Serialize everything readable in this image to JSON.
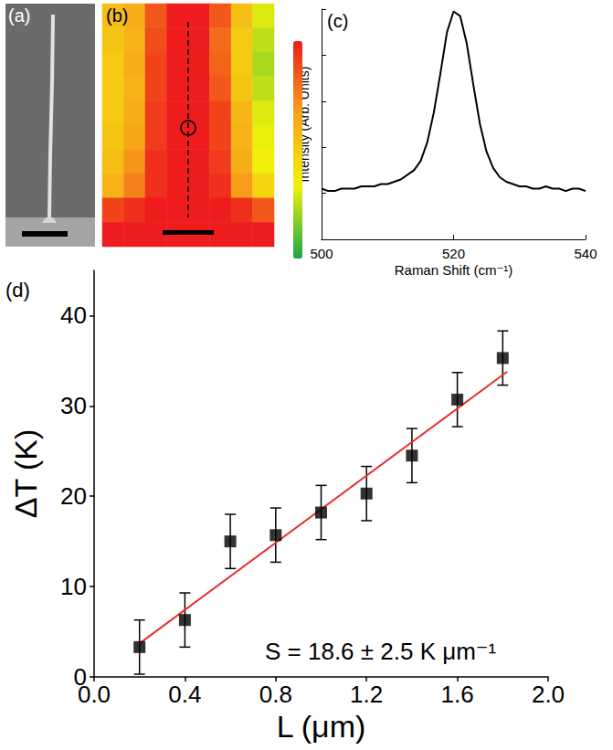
{
  "chart_data": [
    {
      "type": "image",
      "title": "(a)"
    },
    {
      "type": "heatmap",
      "title": "(b)",
      "color_range": [
        0,
        1
      ],
      "cells": [
        [
          0.55,
          0.62,
          0.85,
          1,
          1,
          0.85,
          0.55,
          0.3
        ],
        [
          0.52,
          0.6,
          0.88,
          1,
          1,
          0.8,
          0.5,
          0.25
        ],
        [
          0.5,
          0.62,
          0.9,
          1,
          1,
          0.82,
          0.5,
          0.22
        ],
        [
          0.5,
          0.6,
          0.9,
          1,
          1,
          0.85,
          0.52,
          0.25
        ],
        [
          0.5,
          0.62,
          0.92,
          1,
          1,
          0.9,
          0.58,
          0.3
        ],
        [
          0.52,
          0.65,
          0.92,
          1,
          1,
          0.9,
          0.6,
          0.32
        ],
        [
          0.55,
          0.7,
          0.95,
          1,
          1,
          0.92,
          0.62,
          0.35
        ],
        [
          0.6,
          0.75,
          0.95,
          1,
          1,
          0.95,
          0.68,
          0.45
        ],
        [
          0.9,
          0.95,
          1,
          1,
          1,
          1,
          0.95,
          0.85
        ],
        [
          1,
          1,
          1,
          1,
          1,
          1,
          1,
          1
        ]
      ]
    },
    {
      "type": "line",
      "title": "(c)",
      "x_label": "Raman Shift (cm⁻¹)",
      "y_label": "Intensity (Arb. Units)",
      "color": "#000000",
      "tick_labels": "x",
      "x": [
        500,
        501,
        502,
        503,
        504,
        505,
        506,
        507,
        508,
        509,
        510,
        511,
        512,
        513,
        514,
        515,
        516,
        517,
        518,
        519,
        520,
        521,
        522,
        523,
        524,
        525,
        526,
        527,
        528,
        529,
        530,
        531,
        532,
        533,
        534,
        535,
        536,
        537,
        538,
        539,
        540
      ],
      "values": [
        0.22,
        0.21,
        0.21,
        0.22,
        0.22,
        0.22,
        0.23,
        0.23,
        0.23,
        0.24,
        0.24,
        0.25,
        0.26,
        0.28,
        0.3,
        0.34,
        0.42,
        0.55,
        0.72,
        0.9,
        0.99,
        0.97,
        0.85,
        0.67,
        0.5,
        0.38,
        0.31,
        0.27,
        0.25,
        0.24,
        0.23,
        0.23,
        0.22,
        0.22,
        0.23,
        0.22,
        0.22,
        0.21,
        0.22,
        0.22,
        0.21
      ],
      "xlim": [
        500,
        540
      ],
      "xticks": [
        500,
        520,
        540
      ],
      "ylim": [
        0,
        1
      ],
      "yticks": [
        0,
        0.2,
        0.4,
        0.6,
        0.8,
        1
      ]
    },
    {
      "type": "scatter",
      "title": "(d)",
      "x_label": "L (μm)",
      "y_label": "ΔT (K)",
      "annotation": "S = 18.6 ± 2.5 K μm⁻¹",
      "xlim": [
        0,
        2
      ],
      "xticks": [
        {
          "value": 0,
          "label": "0.0"
        },
        0.4,
        0.8,
        1.2,
        1.6,
        {
          "value": 2,
          "label": "2.0"
        }
      ],
      "ylim": [
        0,
        45
      ],
      "yticks": [
        0,
        10,
        20,
        30,
        40
      ],
      "series": [
        {
          "type": "scatter",
          "marker": "square",
          "color": "#000000",
          "x": [
            0.2,
            0.4,
            0.6,
            0.8,
            1.0,
            1.2,
            1.4,
            1.6,
            1.8
          ],
          "values": [
            3.3,
            6.3,
            15,
            15.7,
            18.2,
            20.3,
            24.5,
            30.7,
            35.3
          ],
          "errors": [
            3,
            3,
            3,
            3,
            3,
            3,
            3,
            3,
            3
          ]
        },
        {
          "type": "line",
          "color": "#e8302a",
          "x": [
            0.2,
            1.82
          ],
          "values": [
            3.7,
            33.8
          ]
        }
      ]
    }
  ]
}
